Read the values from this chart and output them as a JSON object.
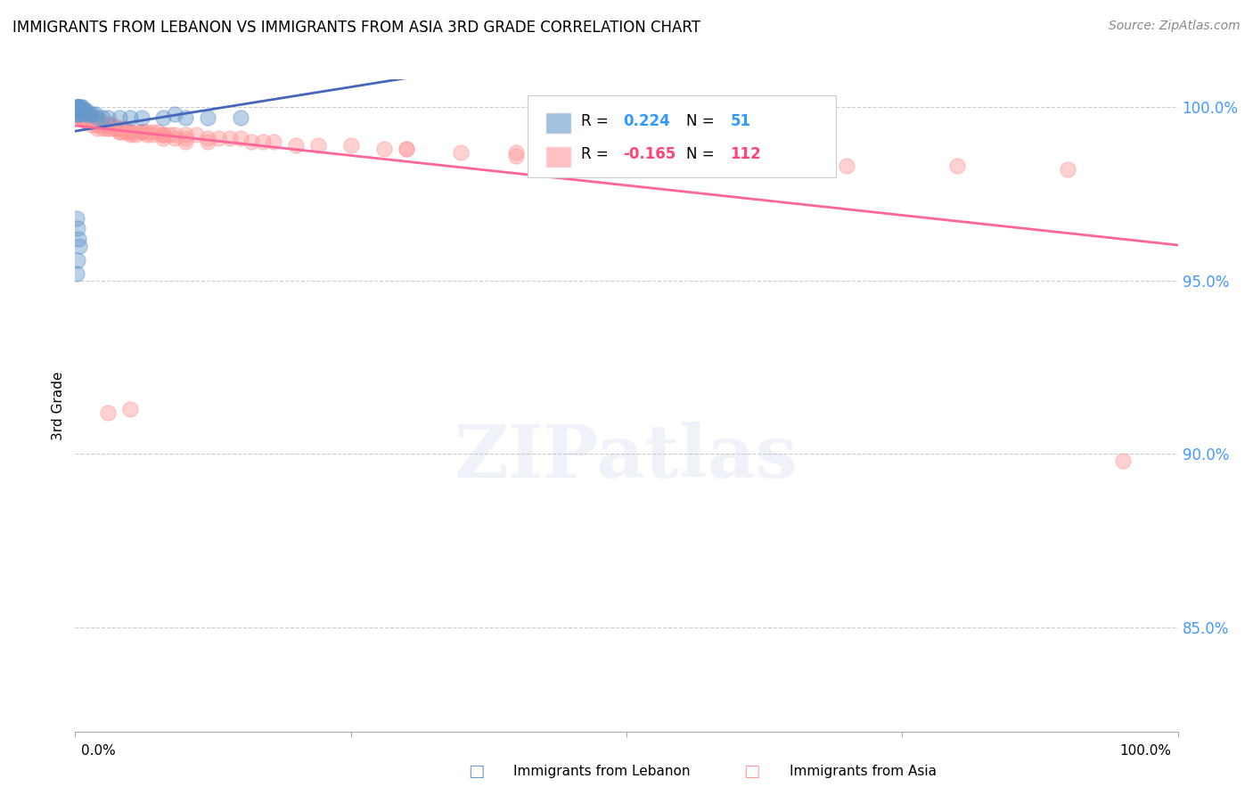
{
  "title": "IMMIGRANTS FROM LEBANON VS IMMIGRANTS FROM ASIA 3RD GRADE CORRELATION CHART",
  "source": "Source: ZipAtlas.com",
  "ylabel": "3rd Grade",
  "blue_R": 0.224,
  "blue_N": 51,
  "pink_R": -0.165,
  "pink_N": 112,
  "blue_color": "#6699CC",
  "pink_color": "#FF9999",
  "blue_line_color": "#4466BB",
  "pink_line_color": "#FF6699",
  "background_color": "#FFFFFF",
  "grid_color": "#CCCCCC",
  "xlim": [
    0.0,
    1.0
  ],
  "ylim": [
    0.82,
    1.008
  ],
  "yticks": [
    0.85,
    0.9,
    0.95,
    1.0
  ],
  "ytick_labels": [
    "85.0%",
    "90.0%",
    "95.0%",
    "100.0%"
  ],
  "blue_x": [
    0.001,
    0.001,
    0.002,
    0.002,
    0.002,
    0.003,
    0.003,
    0.003,
    0.004,
    0.004,
    0.005,
    0.005,
    0.006,
    0.006,
    0.007,
    0.007,
    0.008,
    0.009,
    0.01,
    0.012,
    0.013,
    0.015,
    0.018,
    0.02,
    0.025,
    0.03,
    0.04,
    0.05,
    0.06,
    0.08,
    0.09,
    0.1,
    0.12,
    0.15,
    0.001,
    0.002,
    0.003,
    0.001,
    0.002,
    0.004,
    0.001,
    0.002,
    0.003,
    0.001,
    0.002,
    0.003,
    0.004,
    0.005,
    0.006,
    0.007,
    0.008
  ],
  "blue_y": [
    1.0,
    1.0,
    1.0,
    1.0,
    0.999,
    1.0,
    1.0,
    0.999,
    1.0,
    0.999,
    0.999,
    1.0,
    0.999,
    1.0,
    0.999,
    0.999,
    0.999,
    0.999,
    0.999,
    0.998,
    0.998,
    0.998,
    0.998,
    0.997,
    0.997,
    0.997,
    0.997,
    0.997,
    0.997,
    0.997,
    0.998,
    0.997,
    0.997,
    0.997,
    0.968,
    0.965,
    0.962,
    0.952,
    0.956,
    0.96,
    0.998,
    0.998,
    0.999,
    0.999,
    0.999,
    0.999,
    0.998,
    0.999,
    0.999,
    0.999,
    0.998
  ],
  "pink_x": [
    0.001,
    0.002,
    0.003,
    0.004,
    0.005,
    0.006,
    0.007,
    0.008,
    0.009,
    0.01,
    0.011,
    0.012,
    0.013,
    0.014,
    0.015,
    0.016,
    0.017,
    0.018,
    0.019,
    0.02,
    0.022,
    0.024,
    0.026,
    0.028,
    0.03,
    0.032,
    0.034,
    0.036,
    0.038,
    0.04,
    0.042,
    0.045,
    0.048,
    0.05,
    0.055,
    0.06,
    0.065,
    0.07,
    0.075,
    0.08,
    0.085,
    0.09,
    0.1,
    0.11,
    0.12,
    0.13,
    0.14,
    0.15,
    0.16,
    0.17,
    0.18,
    0.2,
    0.22,
    0.25,
    0.28,
    0.3,
    0.35,
    0.4,
    0.45,
    0.5,
    0.003,
    0.005,
    0.007,
    0.01,
    0.015,
    0.02,
    0.025,
    0.03,
    0.04,
    0.05,
    0.07,
    0.09,
    0.1,
    0.12,
    0.005,
    0.01,
    0.02,
    0.05,
    0.08,
    0.1,
    0.003,
    0.005,
    0.008,
    0.012,
    0.016,
    0.02,
    0.03,
    0.04,
    0.06,
    0.08,
    0.02,
    0.04,
    0.06,
    0.08,
    0.005,
    0.01,
    0.015,
    0.025,
    0.035,
    0.045,
    0.055,
    0.065,
    0.03,
    0.05,
    0.3,
    0.4,
    0.5,
    0.6,
    0.7,
    0.8,
    0.9,
    0.95
  ],
  "pink_y": [
    0.998,
    0.999,
    0.998,
    0.998,
    0.998,
    0.998,
    0.997,
    0.997,
    0.997,
    0.997,
    0.997,
    0.997,
    0.997,
    0.997,
    0.996,
    0.997,
    0.996,
    0.996,
    0.996,
    0.996,
    0.996,
    0.996,
    0.995,
    0.995,
    0.995,
    0.995,
    0.995,
    0.994,
    0.994,
    0.994,
    0.994,
    0.994,
    0.993,
    0.993,
    0.993,
    0.993,
    0.993,
    0.993,
    0.993,
    0.992,
    0.992,
    0.992,
    0.992,
    0.992,
    0.991,
    0.991,
    0.991,
    0.991,
    0.99,
    0.99,
    0.99,
    0.989,
    0.989,
    0.989,
    0.988,
    0.988,
    0.987,
    0.986,
    0.986,
    0.985,
    0.998,
    0.997,
    0.997,
    0.996,
    0.996,
    0.995,
    0.995,
    0.994,
    0.993,
    0.993,
    0.992,
    0.991,
    0.991,
    0.99,
    0.997,
    0.996,
    0.994,
    0.992,
    0.991,
    0.99,
    0.998,
    0.997,
    0.997,
    0.996,
    0.996,
    0.995,
    0.994,
    0.993,
    0.993,
    0.992,
    0.996,
    0.994,
    0.993,
    0.992,
    0.997,
    0.996,
    0.995,
    0.994,
    0.994,
    0.993,
    0.992,
    0.992,
    0.912,
    0.913,
    0.988,
    0.987,
    0.985,
    0.984,
    0.983,
    0.983,
    0.982,
    0.898
  ]
}
